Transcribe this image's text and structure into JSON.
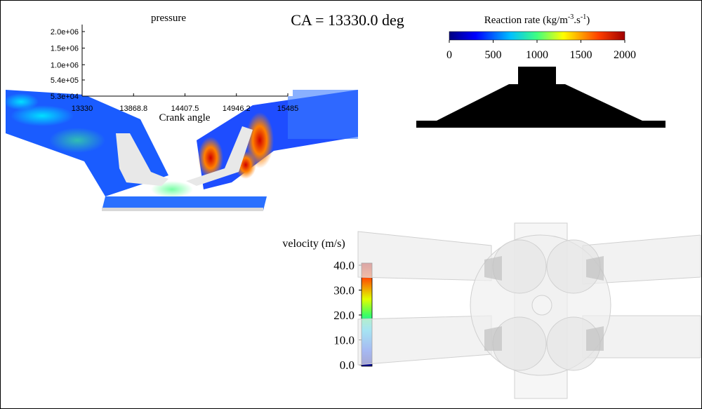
{
  "pressure_plot": {
    "title": "pressure",
    "x_label": "Crank angle",
    "xlim": [
      13330,
      15485
    ],
    "xticks": [
      13330,
      13868.8,
      14407.5,
      14946.2,
      15485
    ],
    "ylim": [
      53000,
      2000000
    ],
    "yticks": [
      {
        "value": 2000000,
        "label": "2.0e+06"
      },
      {
        "value": 1500000,
        "label": "1.5e+06"
      },
      {
        "value": 1000000,
        "label": "1.0e+06"
      },
      {
        "value": 540000,
        "label": "5.4e+05"
      },
      {
        "value": 53000,
        "label": "5.3e+04"
      }
    ]
  },
  "annotation": "CA = 13330.0 deg",
  "reaction_colorbar": {
    "title_parts": [
      "Reaction rate (kg/m",
      "-3",
      ".s",
      "-1",
      ")"
    ],
    "lim": [
      0,
      2000
    ],
    "ticks": [
      0,
      500,
      1000,
      1500,
      2000
    ]
  },
  "velocity_colorbar": {
    "title": "velocity (m/s)",
    "lim": [
      0,
      40
    ],
    "ticks": [
      {
        "value": 40,
        "label": "40.0"
      },
      {
        "value": 30,
        "label": "30.0"
      },
      {
        "value": 20,
        "label": "20.0"
      },
      {
        "value": 10,
        "label": "10.0"
      },
      {
        "value": 0,
        "label": "0.0"
      }
    ]
  }
}
